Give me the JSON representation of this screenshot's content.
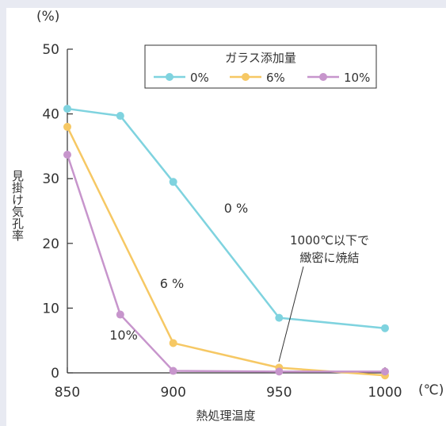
{
  "chart_data": {
    "type": "line",
    "y_unit": "(%)",
    "x_unit": "(℃)",
    "ylabel": "見掛け気孔率",
    "xlabel": "熱処理温度",
    "xlim": [
      850,
      1000
    ],
    "ylim": [
      0,
      50
    ],
    "x_ticks": [
      "850",
      "900",
      "950",
      "1000"
    ],
    "y_ticks": [
      "50",
      "40",
      "30",
      "20",
      "10",
      "0"
    ],
    "legend": {
      "title": "ガラス添加量",
      "entries": [
        "0%",
        "6%",
        "10%"
      ],
      "placement": "top-right"
    },
    "series": [
      {
        "name": "0%",
        "color": "#7fd3df",
        "x": [
          850,
          875,
          900,
          950,
          1000
        ],
        "y": [
          40.8,
          39.7,
          29.5,
          8.5,
          6.9
        ]
      },
      {
        "name": "6%",
        "color": "#f6c864",
        "x": [
          850,
          900,
          950,
          1000
        ],
        "y": [
          38.0,
          4.6,
          0.8,
          -0.4
        ]
      },
      {
        "name": "10%",
        "color": "#c795cc",
        "x": [
          850,
          875,
          900,
          950,
          1000
        ],
        "y": [
          33.7,
          9.0,
          0.3,
          0.2,
          0.2
        ]
      }
    ],
    "annotations": {
      "s0": "0 %",
      "s6": "6 %",
      "s10": "10%",
      "note_line1": "1000℃以下で",
      "note_line2": "緻密に焼結"
    }
  }
}
